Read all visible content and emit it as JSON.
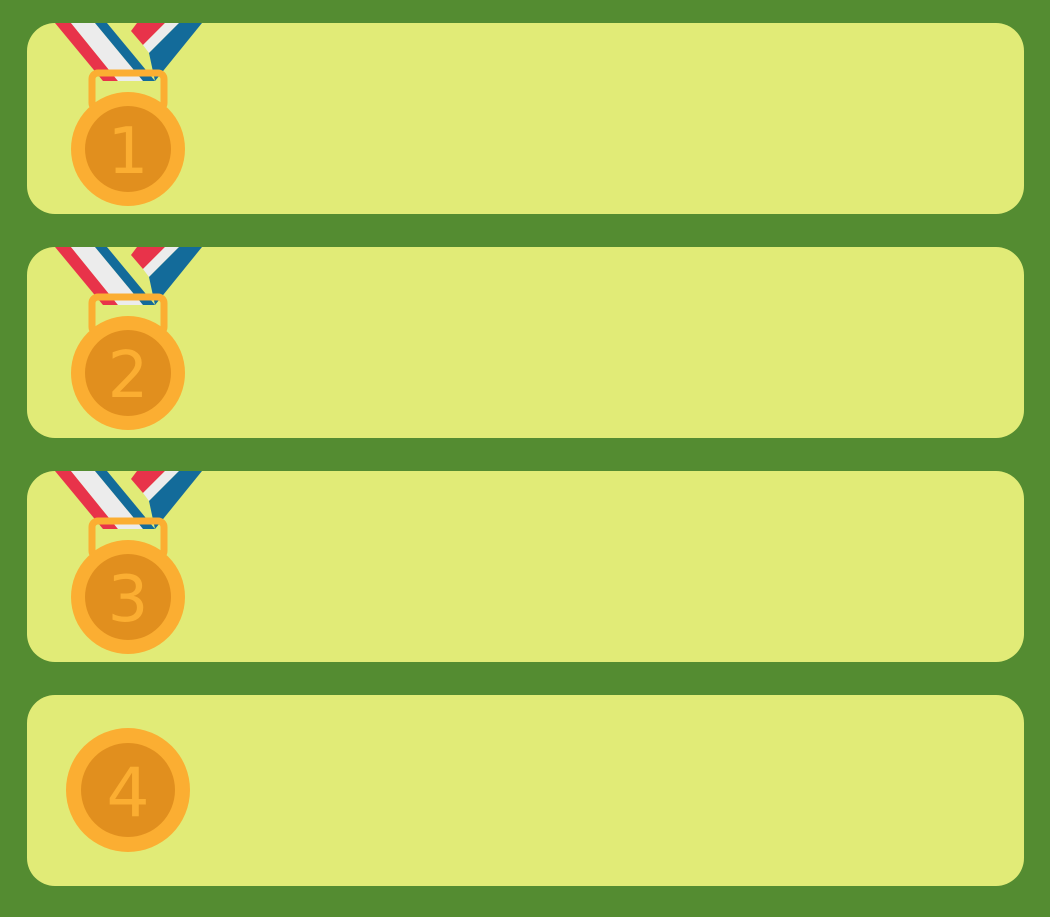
{
  "colors": {
    "background": "#548c31",
    "card": "#e1eb77",
    "medal_outer": "#fbae32",
    "medal_inner": "#e18f1e",
    "ribbon_red": "#e8334a",
    "ribbon_white": "#ececec",
    "ribbon_blue": "#136b9a"
  },
  "ranks": [
    {
      "number": "1",
      "has_ribbon": true,
      "icon": "medal-icon"
    },
    {
      "number": "2",
      "has_ribbon": true,
      "icon": "medal-icon"
    },
    {
      "number": "3",
      "has_ribbon": true,
      "icon": "medal-icon"
    },
    {
      "number": "4",
      "has_ribbon": false,
      "icon": "medal-icon"
    }
  ]
}
